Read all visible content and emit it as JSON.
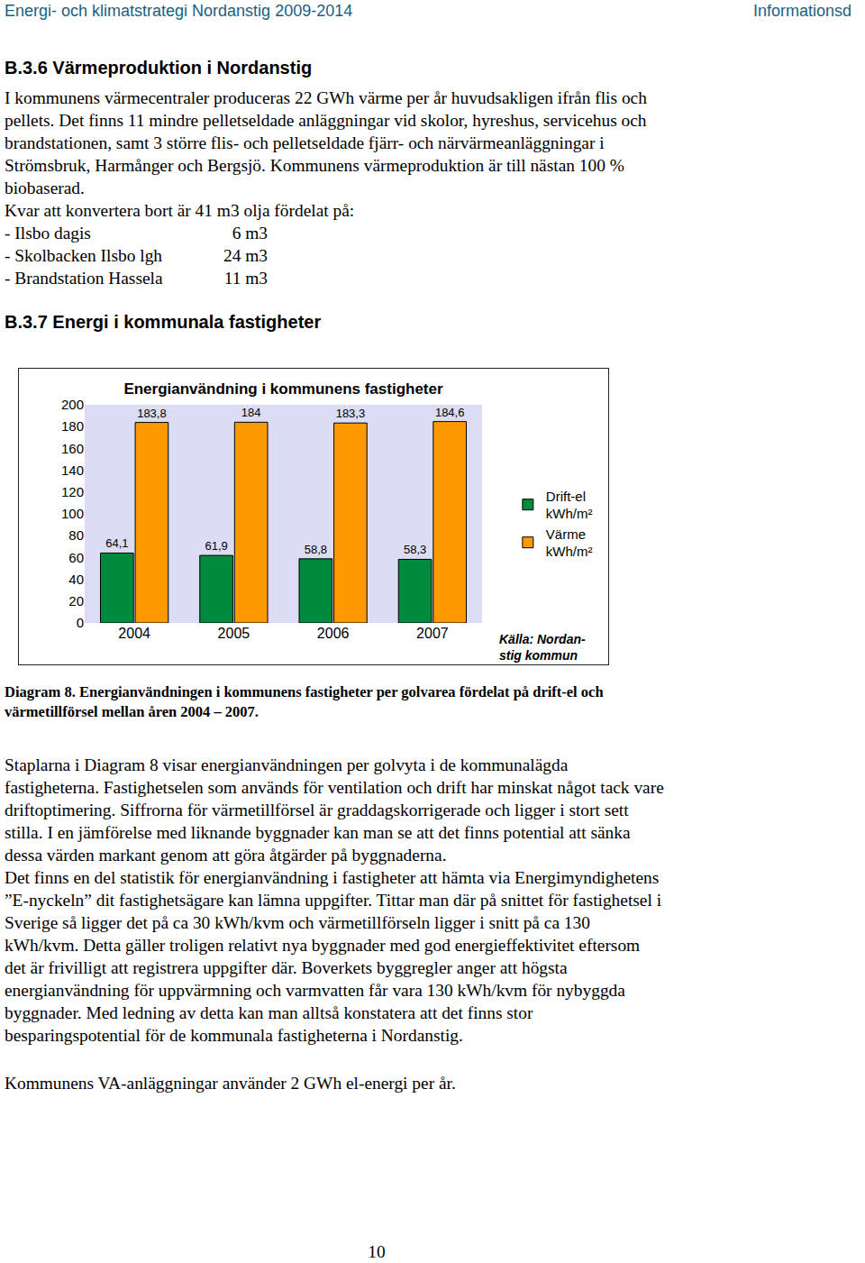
{
  "header": {
    "left": "Energi- och klimatstrategi Nordanstig 2009-2014",
    "right": "Informationsd"
  },
  "section_b36": {
    "heading": "B.3.6 Värmeproduktion i Nordanstig",
    "lines": [
      "I kommunens värmecentraler produceras 22 GWh värme per år huvudsakligen ifrån flis och",
      "pellets. Det finns 11 mindre pelletseldade anläggningar vid skolor, hyreshus, servicehus och",
      "brandstationen, samt 3 större flis- och pelletseldade fjärr- och närvärmeanläggningar  i",
      "Strömsbruk, Harmånger och Bergsjö.  Kommunens värmeproduktion är till nästan 100 %",
      "biobaserad.",
      "Kvar att konvertera bort är 41 m3 olja fördelat på:"
    ],
    "oil_list": [
      {
        "label": "- Ilsbo dagis",
        "value": "6 m3"
      },
      {
        "label": "- Skolbacken Ilsbo lgh",
        "value": "24 m3"
      },
      {
        "label": "- Brandstation Hassela",
        "value": "11 m3"
      }
    ]
  },
  "section_b37": {
    "heading": "B.3.7 Energi i kommunala fastigheter",
    "caption": [
      "Diagram 8. Energianvändningen i kommunens fastigheter per golvarea fördelat på drift-el och",
      "värmetillförsel mellan åren 2004 – 2007."
    ],
    "paragraph": [
      "Staplarna i Diagram 8 visar energianvändningen per golvyta i de kommunalägda",
      "fastigheterna. Fastighetselen som används för ventilation och drift har minskat något tack vare",
      "driftoptimering. Siffrorna för värmetillförsel är graddagskorrigerade och ligger i stort sett",
      "stilla. I en jämförelse med liknande byggnader kan man se att det finns potential att sänka",
      "dessa värden markant genom att göra åtgärder på byggnaderna.",
      "Det finns en del statistik för energianvändning i fastigheter att hämta via Energimyndighetens",
      "”E-nyckeln” dit fastighetsägare kan lämna uppgifter. Tittar man där på snittet för fastighetsel i",
      "Sverige så ligger det på ca 30 kWh/kvm och värmetillförseln ligger i snitt på ca 130",
      "kWh/kvm. Detta gäller troligen relativt nya byggnader med god energieffektivitet eftersom",
      "det är frivilligt att registrera uppgifter där. Boverkets byggregler anger att högsta",
      "energianvändning för uppvärmning och varmvatten får vara 130 kWh/kvm för nybyggda",
      "byggnader. Med ledning av detta kan man alltså konstatera att det finns stor",
      "besparingspotential för de kommunala fastigheterna i Nordanstig."
    ],
    "closing": "Kommunens VA-anläggningar använder 2 GWh el-energi per år."
  },
  "chart_data": {
    "type": "bar",
    "title": "Energianvändning i kommunens fastigheter",
    "categories": [
      "2004",
      "2005",
      "2006",
      "2007"
    ],
    "series": [
      {
        "name": "Drift-el kWh/m²",
        "color": "#008a3e",
        "values": [
          64.1,
          61.9,
          58.8,
          58.3
        ],
        "value_labels": [
          "64,1",
          "61,9",
          "58,8",
          "58,3"
        ]
      },
      {
        "name": "Värme kWh/m²",
        "color": "#ff9900",
        "values": [
          183.8,
          184,
          183.3,
          184.6
        ],
        "value_labels": [
          "183,8",
          "184",
          "183,3",
          "184,6"
        ]
      }
    ],
    "ylim": [
      0,
      200
    ],
    "yticks": [
      0,
      20,
      40,
      60,
      80,
      100,
      120,
      140,
      160,
      180,
      200
    ],
    "grid": false,
    "legend": "right",
    "data_labels": true,
    "annotations": [
      [
        "Källa: Nordan-",
        "stig kommun"
      ]
    ]
  },
  "page_number": "10"
}
